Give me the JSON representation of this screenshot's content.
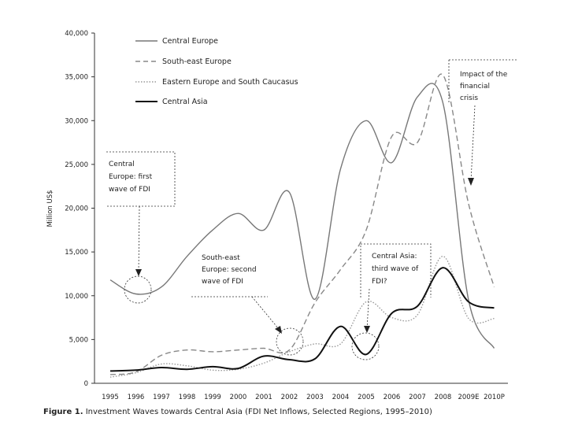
{
  "chart_data": {
    "type": "line",
    "title": "",
    "xlabel": "",
    "ylabel": "Million US$",
    "categories": [
      "1995",
      "1996",
      "1997",
      "1998",
      "1999",
      "2000",
      "2001",
      "2002",
      "2003",
      "2004",
      "2005",
      "2006",
      "2007",
      "2008",
      "2009E",
      "2010P"
    ],
    "yticks": [
      0,
      5000,
      10000,
      15000,
      20000,
      25000,
      30000,
      35000,
      40000
    ],
    "ytick_labels": [
      "0",
      "5,000",
      "10,000",
      "15,000",
      "20,000",
      "25,000",
      "30,000",
      "35,000",
      "40,000"
    ],
    "ylim": [
      0,
      40000
    ],
    "legend_position": "top-left",
    "series": [
      {
        "name": "Central Europe",
        "style": "solid-gray",
        "color": "#777777",
        "values": [
          11800,
          10200,
          11000,
          14500,
          17500,
          19400,
          17500,
          21800,
          9600,
          24500,
          30000,
          25200,
          32700,
          32000,
          9500,
          4000
        ]
      },
      {
        "name": "South-east Europe",
        "style": "dashed-gray",
        "color": "#888888",
        "values": [
          1000,
          1300,
          3200,
          3800,
          3600,
          3800,
          4000,
          3800,
          9200,
          13000,
          17500,
          28200,
          27500,
          35200,
          20500,
          11000
        ]
      },
      {
        "name": "Eastern Europe and South Caucasus",
        "style": "dotted-gray",
        "color": "#999999",
        "values": [
          700,
          1200,
          2200,
          2000,
          1500,
          1600,
          2300,
          3600,
          4500,
          4500,
          9300,
          7500,
          7800,
          14500,
          7400,
          7400
        ]
      },
      {
        "name": "Central Asia",
        "style": "solid-black",
        "color": "#111111",
        "values": [
          1400,
          1500,
          1800,
          1600,
          1900,
          1700,
          3100,
          2700,
          2800,
          6500,
          3300,
          8000,
          8800,
          13200,
          9300,
          8600
        ]
      }
    ],
    "annotations": [
      {
        "lines": [
          "Central",
          "Europe: first",
          "wave of FDI"
        ]
      },
      {
        "lines": [
          "South-east",
          "Europe: second",
          "wave of FDI"
        ]
      },
      {
        "lines": [
          "Central Asia:",
          "third wave of",
          "FDI?"
        ]
      },
      {
        "lines": [
          "Impact of the",
          "financial",
          "crisis"
        ]
      }
    ]
  },
  "caption": {
    "label": "Figure 1.",
    "text": "Investment Waves towards Central Asia (FDI Net Inflows, Selected Regions, 1995–2010)"
  }
}
